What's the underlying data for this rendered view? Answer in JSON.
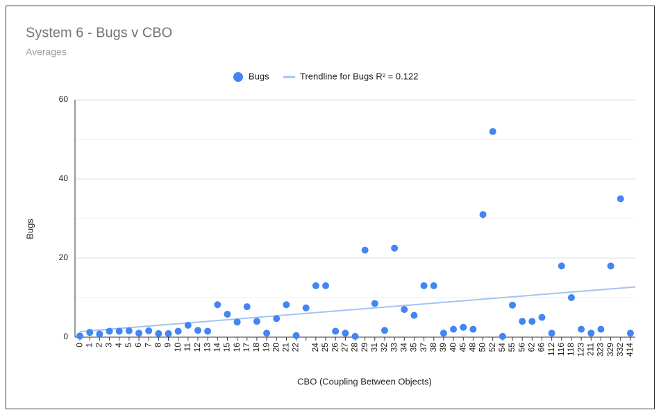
{
  "chart_data": {
    "type": "scatter",
    "title": "System 6 - Bugs v CBO",
    "subtitle": "Averages",
    "x_label": "CBO (Coupling Between Objects)",
    "y_label": "Bugs",
    "categories": [
      "0",
      "1",
      "2",
      "3",
      "4",
      "5",
      "6",
      "7",
      "8",
      "9",
      "10",
      "11",
      "12",
      "13",
      "14",
      "15",
      "16",
      "17",
      "18",
      "19",
      "20",
      "21",
      "22",
      null,
      "24",
      "25",
      "26",
      "27",
      "28",
      "29",
      "31",
      "32",
      "33",
      "34",
      "35",
      "37",
      "38",
      "39",
      "40",
      "45",
      "48",
      "50",
      "52",
      "54",
      "55",
      "56",
      "62",
      "66",
      "112",
      "116",
      "118",
      "123",
      "211",
      "323",
      "329",
      "332",
      "414"
    ],
    "series": [
      {
        "name": "Bugs",
        "color": "#4285f4",
        "values": [
          0.3,
          1.2,
          0.8,
          1.5,
          1.5,
          1.6,
          1.0,
          1.6,
          0.9,
          0.9,
          1.5,
          3.0,
          1.7,
          1.5,
          8.2,
          5.8,
          3.8,
          7.7,
          4.0,
          1.0,
          4.7,
          8.2,
          0.4,
          7.4,
          13,
          13,
          1.5,
          1.0,
          0.2,
          22,
          8.5,
          1.7,
          22.5,
          7,
          5.5,
          13,
          13,
          1.0,
          2.0,
          2.5,
          2.0,
          31,
          52,
          0.2,
          8.1,
          4.0,
          4.0,
          5.0,
          1.0,
          18,
          10,
          2.0,
          1.0,
          2.0,
          18,
          35,
          1.0
        ]
      }
    ],
    "trendline": {
      "name": "Trendline for Bugs R² = 0.122",
      "color": "#a4c2f4",
      "start": 1.4,
      "end": 12.7
    },
    "ylim": [
      0,
      60
    ],
    "yticks": [
      0,
      20,
      40,
      60
    ],
    "minor_yticks": [
      10,
      30,
      50
    ],
    "grid": true,
    "legend": "top"
  }
}
